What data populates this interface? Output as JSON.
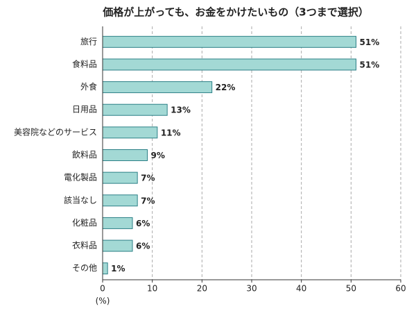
{
  "chart_data": {
    "type": "barh",
    "title": "価格が上がっても、お金をかけたいもの（3つまで選択）",
    "categories": [
      "旅行",
      "食料品",
      "外食",
      "日用品",
      "美容院などのサービス",
      "飲料品",
      "電化製品",
      "該当なし",
      "化粧品",
      "衣料品",
      "その他"
    ],
    "values": [
      51,
      51,
      22,
      13,
      11,
      9,
      7,
      7,
      6,
      6,
      1
    ],
    "value_labels": [
      "51%",
      "51%",
      "22%",
      "13%",
      "11%",
      "9%",
      "7%",
      "7%",
      "6%",
      "6%",
      "1%"
    ],
    "color": "#a3d9d5",
    "edge_color": "#2b7f86",
    "xlim": [
      0,
      60
    ],
    "xticks": [
      0,
      10,
      20,
      30,
      40,
      50,
      60
    ],
    "xlabel": "(%)",
    "grid": true
  }
}
